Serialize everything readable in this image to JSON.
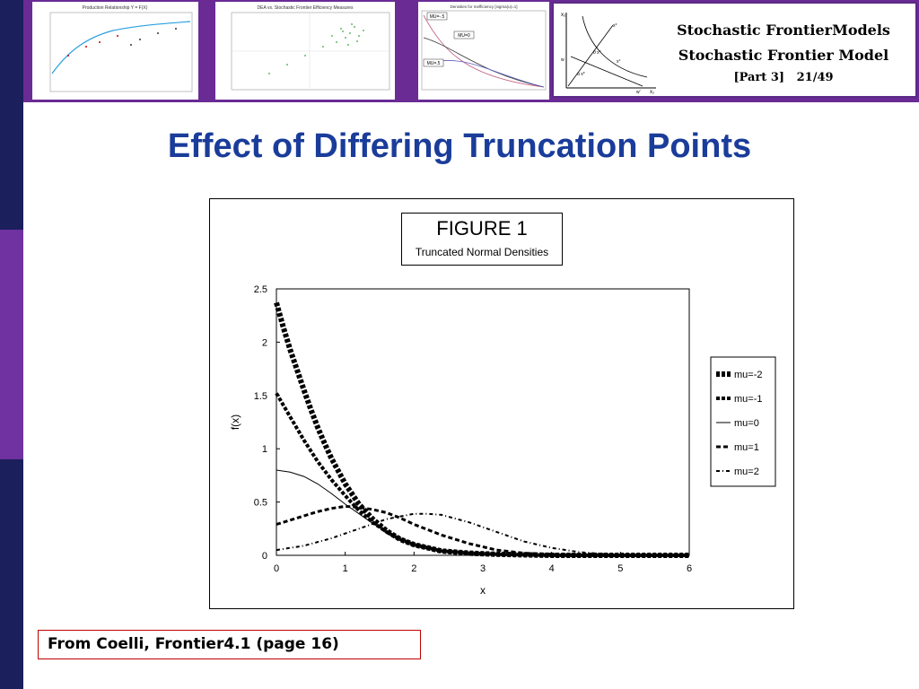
{
  "header": {
    "title_line1": "Stochastic FrontierModels",
    "title_line2": "Stochastic Frontier Model",
    "part": "[Part 3]",
    "page": "21/49",
    "thumbnails": [
      {
        "title": "Production Relationship Y = F(X)"
      },
      {
        "title": "DEA vs. Stochastic Frontier Efficiency Measures"
      },
      {
        "title": "Densities for Inefficiency [sigma(u)=1]",
        "labels": [
          "MU=-.5",
          "MU=0",
          "MU=.5"
        ]
      }
    ],
    "diagram_labels": {
      "y_axis": "x₂",
      "x_axis": "x₁",
      "xstar": "x*",
      "theta": "θ x*",
      "alpha": "α x*",
      "w": "w",
      "wprime": "w'",
      "xdash": "x°"
    }
  },
  "slide": {
    "title": "Effect of Differing Truncation Points",
    "source": "From Coelli, Frontier4.1 (page 16)"
  },
  "colors": {
    "accent_blue": "#1a3c9a",
    "banner_purple": "#6a2b95",
    "sidebar_dark": "#1b1f5c",
    "sidebar_purple": "#6f32a0",
    "source_border": "#c00000"
  },
  "chart_data": {
    "type": "line",
    "title": "FIGURE 1",
    "subtitle": "Truncated Normal Densities",
    "xlabel": "x",
    "ylabel": "f(x)",
    "xlim": [
      0,
      6
    ],
    "ylim": [
      0,
      2.5
    ],
    "xticks": [
      "0",
      "1",
      "2",
      "3",
      "4",
      "5",
      "6"
    ],
    "yticks": [
      "0",
      "0.5",
      "1",
      "1.5",
      "2",
      "2.5"
    ],
    "series": [
      {
        "name": "mu=-2",
        "style": "thick-dashed",
        "points": [
          [
            0,
            2.37
          ],
          [
            0.1,
            2.14
          ],
          [
            0.2,
            1.93
          ],
          [
            0.3,
            1.74
          ],
          [
            0.4,
            1.55
          ],
          [
            0.5,
            1.37
          ],
          [
            0.6,
            1.2
          ],
          [
            0.7,
            1.05
          ],
          [
            0.8,
            0.91
          ],
          [
            0.9,
            0.79
          ],
          [
            1.0,
            0.67
          ],
          [
            1.2,
            0.48
          ],
          [
            1.4,
            0.34
          ],
          [
            1.6,
            0.23
          ],
          [
            1.8,
            0.15
          ],
          [
            2.0,
            0.1
          ],
          [
            2.4,
            0.04
          ],
          [
            2.8,
            0.02
          ],
          [
            3.2,
            0.01
          ],
          [
            4.0,
            0.0
          ],
          [
            6.0,
            0.0
          ]
        ]
      },
      {
        "name": "mu=-1",
        "style": "dashed",
        "points": [
          [
            0,
            1.52
          ],
          [
            0.2,
            1.3
          ],
          [
            0.4,
            1.08
          ],
          [
            0.6,
            0.88
          ],
          [
            0.8,
            0.71
          ],
          [
            1.0,
            0.56
          ],
          [
            1.2,
            0.42
          ],
          [
            1.4,
            0.31
          ],
          [
            1.6,
            0.22
          ],
          [
            1.8,
            0.15
          ],
          [
            2.0,
            0.1
          ],
          [
            2.4,
            0.04
          ],
          [
            2.8,
            0.02
          ],
          [
            3.2,
            0.01
          ],
          [
            4.0,
            0.0
          ],
          [
            6.0,
            0.0
          ]
        ]
      },
      {
        "name": "mu=0",
        "style": "solid",
        "points": [
          [
            0,
            0.8
          ],
          [
            0.2,
            0.78
          ],
          [
            0.4,
            0.74
          ],
          [
            0.6,
            0.67
          ],
          [
            0.8,
            0.58
          ],
          [
            1.0,
            0.48
          ],
          [
            1.2,
            0.39
          ],
          [
            1.4,
            0.3
          ],
          [
            1.6,
            0.22
          ],
          [
            1.8,
            0.16
          ],
          [
            2.0,
            0.11
          ],
          [
            2.4,
            0.04
          ],
          [
            2.8,
            0.02
          ],
          [
            3.2,
            0.01
          ],
          [
            4.0,
            0.0
          ],
          [
            6.0,
            0.0
          ]
        ]
      },
      {
        "name": "mu=1",
        "style": "medium-dashed",
        "points": [
          [
            0,
            0.29
          ],
          [
            0.2,
            0.33
          ],
          [
            0.4,
            0.37
          ],
          [
            0.6,
            0.41
          ],
          [
            0.8,
            0.44
          ],
          [
            1.0,
            0.46
          ],
          [
            1.2,
            0.45
          ],
          [
            1.4,
            0.43
          ],
          [
            1.6,
            0.4
          ],
          [
            1.8,
            0.35
          ],
          [
            2.0,
            0.29
          ],
          [
            2.4,
            0.19
          ],
          [
            2.8,
            0.11
          ],
          [
            3.2,
            0.05
          ],
          [
            3.6,
            0.02
          ],
          [
            4.0,
            0.01
          ],
          [
            5.0,
            0.0
          ],
          [
            6.0,
            0.0
          ]
        ]
      },
      {
        "name": "mu=2",
        "style": "dash-dot",
        "points": [
          [
            0,
            0.05
          ],
          [
            0.4,
            0.09
          ],
          [
            0.8,
            0.16
          ],
          [
            1.2,
            0.25
          ],
          [
            1.6,
            0.34
          ],
          [
            2.0,
            0.39
          ],
          [
            2.2,
            0.39
          ],
          [
            2.4,
            0.38
          ],
          [
            2.8,
            0.31
          ],
          [
            3.2,
            0.22
          ],
          [
            3.6,
            0.13
          ],
          [
            4.0,
            0.07
          ],
          [
            4.4,
            0.03
          ],
          [
            4.8,
            0.01
          ],
          [
            5.2,
            0.0
          ],
          [
            6.0,
            0.0
          ]
        ]
      }
    ]
  }
}
